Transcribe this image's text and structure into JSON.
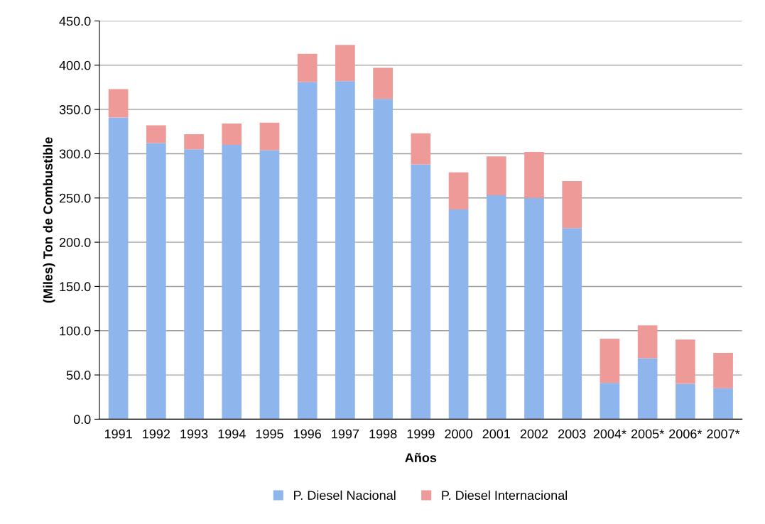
{
  "chart_data": {
    "type": "bar",
    "stacked": true,
    "xlabel": "Años",
    "ylabel": "(Miles) Ton de Combustible",
    "categories": [
      "1991",
      "1992",
      "1993",
      "1994",
      "1995",
      "1996",
      "1997",
      "1998",
      "1999",
      "2000",
      "2001",
      "2002",
      "2003",
      "2004*",
      "2005*",
      "2006*",
      "2007*"
    ],
    "series": [
      {
        "name": "P. Diesel Nacional",
        "color": "#8fb6ec",
        "values": [
          341,
          312,
          305,
          310,
          304,
          381,
          382,
          362,
          288,
          237,
          253,
          250,
          216,
          41,
          69,
          40,
          35
        ]
      },
      {
        "name": "P. Diesel Internacional",
        "color": "#ee9a98",
        "values": [
          32,
          20,
          17,
          24,
          31,
          32,
          41,
          35,
          35,
          42,
          44,
          52,
          53,
          50,
          37,
          50,
          40
        ]
      }
    ],
    "ylim": [
      0,
      450
    ],
    "yticks": [
      {
        "value": 0,
        "label": "0.0"
      },
      {
        "value": 50,
        "label": "50.0"
      },
      {
        "value": 100,
        "label": "100.0"
      },
      {
        "value": 150,
        "label": "150.0"
      },
      {
        "value": 200,
        "label": "200.0"
      },
      {
        "value": 250,
        "label": "250.0"
      },
      {
        "value": 300,
        "label": "300.0"
      },
      {
        "value": 350,
        "label": "350.0"
      },
      {
        "value": 400,
        "label": "400.0"
      },
      {
        "value": 450,
        "label": "450.0"
      }
    ],
    "grid": "y",
    "legend": "bottom"
  }
}
